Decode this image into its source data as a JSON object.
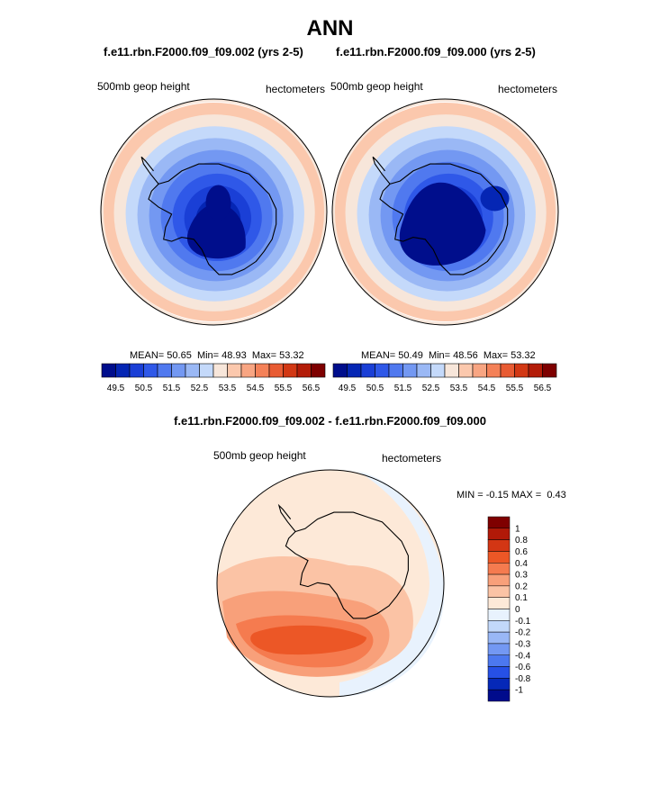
{
  "page_title": "ANN",
  "colors": {
    "absolute_scale": [
      "#000e8c",
      "#0526b4",
      "#1a3fd6",
      "#2f58e8",
      "#5079ef",
      "#7398f2",
      "#9ab8f5",
      "#c4d9fa",
      "#f7e6da",
      "#fbc8ad",
      "#f8a582",
      "#f48158",
      "#e85b33",
      "#d23814",
      "#b31c08",
      "#7e0000"
    ],
    "difference_scale": [
      "#000b8c",
      "#0528b8",
      "#2650e6",
      "#4c78ef",
      "#7398f3",
      "#99b7f6",
      "#c2d8fa",
      "#e8f2fd",
      "#fde9d8",
      "#fbc3a5",
      "#f8a07a",
      "#f57b4f",
      "#ec5726",
      "#d33614",
      "#b11908",
      "#7f0000"
    ]
  },
  "chart_data": [
    {
      "type": "contour",
      "projection": "south-polar-stereographic",
      "title": "f.e11.rbn.F2000.f09_f09.002 (yrs 2-5)",
      "left_label": "500mb geop height",
      "right_label": "hectometers",
      "stats": {
        "mean_label": "MEAN=",
        "mean": "50.65",
        "min_label": "Min=",
        "min": "48.93",
        "max_label": "Max=",
        "max": "53.32"
      },
      "colorbar_ticks": [
        "49.5",
        "50.5",
        "51.5",
        "52.5",
        "53.5",
        "54.5",
        "55.5",
        "56.5"
      ],
      "contour_levels": [
        49.0,
        49.5,
        50.0,
        50.5,
        51.0,
        51.5,
        52.0,
        52.5,
        53.0,
        53.5,
        54.0,
        54.5,
        55.0,
        55.5,
        56.0,
        56.5
      ],
      "variant": "A"
    },
    {
      "type": "contour",
      "projection": "south-polar-stereographic",
      "title": "f.e11.rbn.F2000.f09_f09.000 (yrs 2-5)",
      "left_label": "500mb geop height",
      "right_label": "hectometers",
      "stats": {
        "mean_label": "MEAN=",
        "mean": "50.49",
        "min_label": "Min=",
        "min": "48.56",
        "max_label": "Max=",
        "max": "53.32"
      },
      "colorbar_ticks": [
        "49.5",
        "50.5",
        "51.5",
        "52.5",
        "53.5",
        "54.5",
        "55.5",
        "56.5"
      ],
      "contour_levels": [
        49.0,
        49.5,
        50.0,
        50.5,
        51.0,
        51.5,
        52.0,
        52.5,
        53.0,
        53.5,
        54.0,
        54.5,
        55.0,
        55.5,
        56.0,
        56.5
      ],
      "variant": "B"
    },
    {
      "type": "contour",
      "projection": "south-polar-stereographic",
      "title": "f.e11.rbn.F2000.f09_f09.002 - f.e11.rbn.F2000.f09_f09.000",
      "left_label": "500mb geop height",
      "right_label": "hectometers",
      "stats": {
        "min_label": "MIN =",
        "min": "-0.15",
        "max_label": "MAX =",
        "max": "0.43"
      },
      "colorbar_ticks": [
        "1",
        "0.8",
        "0.6",
        "0.4",
        "0.3",
        "0.2",
        "0.1",
        "0",
        "-0.1",
        "-0.2",
        "-0.3",
        "-0.4",
        "-0.6",
        "-0.8",
        "-1"
      ],
      "contour_levels": [
        -1,
        -0.8,
        -0.6,
        -0.4,
        -0.3,
        -0.2,
        -0.1,
        0,
        0.1,
        0.2,
        0.3,
        0.4,
        0.6,
        0.8,
        1
      ]
    }
  ]
}
